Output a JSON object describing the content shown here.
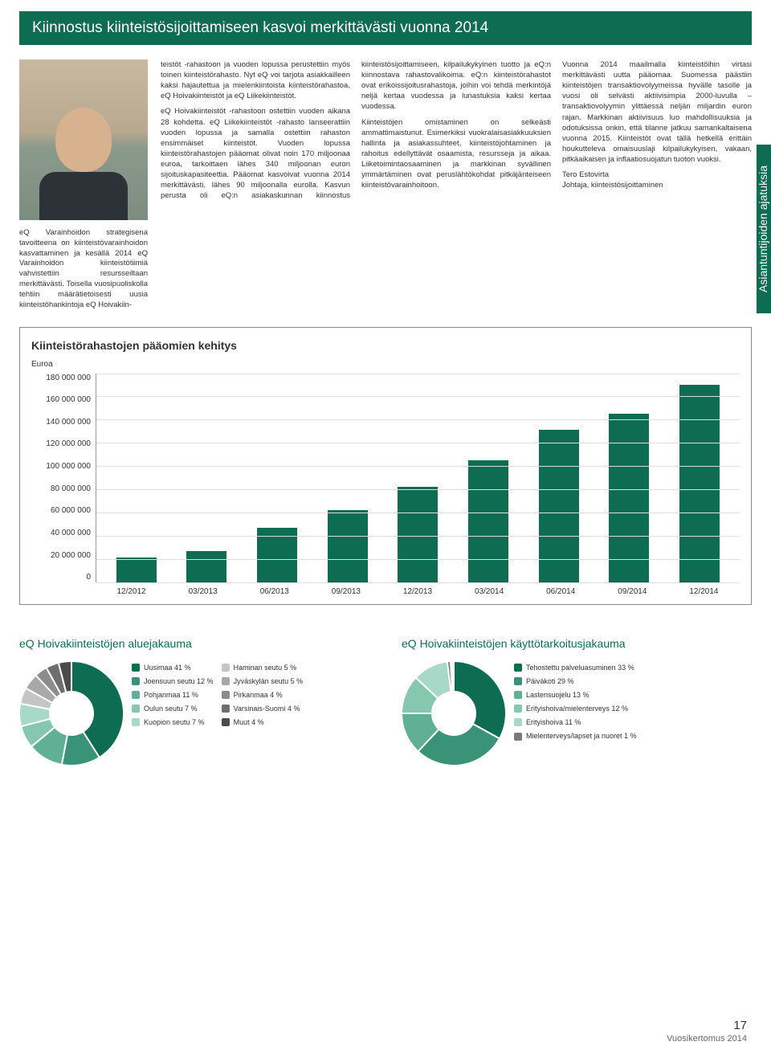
{
  "title": "Kiinnostus kiinteistösijoittamiseen kasvoi merkittävästi vuonna 2014",
  "side_tab": "Asiantuntijoiden ajatuksia",
  "photo_caption": "eQ Varainhoidon strategisena tavoitteena on kiinteistövarainhoidon kasvattaminen ja kesällä 2014 eQ Varainhoidon kiinteistötiimiä vahvistettiin resursseiltaan merkittävästi. Toisella vuosipuoliskolla tehtiin määrätietoisesti uusia kiinteistöhankintoja eQ Hoivakiin-",
  "body_p1": "teistöt -rahastoon ja vuoden lopussa perustettiin myös toinen kiinteistörahasto. Nyt eQ voi tarjota asiakkailleen kaksi hajautettua ja mielenkiintoista kiinteistörahastoa, eQ Hoivakiinteistöt ja eQ Liikekiinteistöt.",
  "body_p2": "eQ Hoivakiinteistöt -rahastoon ostettiin vuoden aikana 28 kohdetta. eQ Liikekiinteistöt -rahasto lanseerattiin vuoden lopussa ja samalla ostettiin rahaston ensimmäiset kiinteistöt. Vuoden lopussa kiinteistörahastojen pääomat olivat noin 170 miljoonaa euroa, tarkoittaen lähes 340 miljoonan euron sijoituskapasiteettia. Pääomat kasvoivat vuonna 2014 merkittävästi, lähes 90 miljoonalla eurolla. Kasvun perusta oli eQ:n asiakaskunnan kiinnostus kiinteistösijoittamiseen, kilpailukykyinen tuotto ja eQ:n kiinnostava rahastovalikoima. eQ:n kiinteistörahastot ovat erikoissijoitusrahastoja, joihin voi tehdä merkintöjä neljä kertaa vuodessa ja lunastuksia kaksi kertaa vuodessa.",
  "body_p3": "Kiinteistöjen omistaminen on selkeästi ammattimaistunut. Esimerkiksi vuokralaisasiakkuuksien hallinta ja asiakassuhteet, kiinteistöjohtaminen ja rahoitus edellyttävät osaamista, resursseja ja aikaa. Liiketoimintaosaaminen ja markkinan syvällinen ymmärtäminen ovat peruslähtökohdat pitkäjänteiseen kiinteistövarainhoitoon.",
  "body_p4": "Vuonna 2014 maailmalla kiinteistöihin virtasi merkittävästi uutta pääomaa. Suomessa päästiin kiinteistöjen transaktiovolyymeissa hyvälle tasolle ja vuosi oli selvästi aktiivisimpia 2000-luvulla – transaktiovolyymin ylittäessä neljän miljardin euron rajan. Markkinan aktiivisuus luo mahdollisuuksia ja odotuksissa onkin, että tilanne jatkuu samankaltaisena vuonna 2015. Kiinteistöt ovat tällä hetkellä erittäin houkutteleva omaisuuslaji kilpailukykyisen, vakaan, pitkäaikaisen ja inflaatiosuojatun tuoton vuoksi.",
  "signer_name": "Tero Estovirta",
  "signer_title": "Johtaja, kiinteistösijoittaminen",
  "chart": {
    "title": "Kiinteistörahastojen pääomien kehitys",
    "y_label": "Euroa",
    "y_ticks": [
      "180 000 000",
      "160 000 000",
      "140 000 000",
      "120 000 000",
      "100 000 000",
      "80 000 000",
      "60 000 000",
      "40 000 000",
      "20 000 000",
      "0"
    ],
    "y_max": 180000000,
    "categories": [
      "12/2012",
      "03/2013",
      "06/2013",
      "09/2013",
      "12/2013",
      "03/2014",
      "06/2014",
      "09/2014",
      "12/2014"
    ],
    "values": [
      21000000,
      27000000,
      47000000,
      62000000,
      82000000,
      105000000,
      131000000,
      145000000,
      170000000
    ],
    "bar_color": "#0d6c51",
    "grid_color": "#dddddd"
  },
  "pie1": {
    "title": "eQ Hoivakiinteistöjen aluejakauma",
    "items": [
      {
        "label": "Uusimaa 41 %",
        "v": 41,
        "c": "#0d6c51"
      },
      {
        "label": "Joensuun seutu 12 %",
        "v": 12,
        "c": "#3a9277"
      },
      {
        "label": "Pohjanmaa 11 %",
        "v": 11,
        "c": "#5fb095"
      },
      {
        "label": "Oulun seutu 7 %",
        "v": 7,
        "c": "#86c7b0"
      },
      {
        "label": "Kuopion seutu 7 %",
        "v": 7,
        "c": "#a8d9c8"
      },
      {
        "label": "Haminan seutu 5 %",
        "v": 5,
        "c": "#c5c5c5"
      },
      {
        "label": "Jyväskylän seutu 5 %",
        "v": 5,
        "c": "#a8a8a8"
      },
      {
        "label": "Pirkanmaa 4 %",
        "v": 4,
        "c": "#8c8c8c"
      },
      {
        "label": "Varsinais-Suomi 4 %",
        "v": 4,
        "c": "#6e6e6e"
      },
      {
        "label": "Muut 4 %",
        "v": 4,
        "c": "#4b4b4b"
      }
    ]
  },
  "pie2": {
    "title": "eQ Hoivakiinteistöjen käyttötarkoitusjakauma",
    "items": [
      {
        "label": "Tehostettu palveluasuminen 33 %",
        "v": 33,
        "c": "#0d6c51"
      },
      {
        "label": "Päiväkoti 29 %",
        "v": 29,
        "c": "#3a9277"
      },
      {
        "label": "Lastensuojelu 13 %",
        "v": 13,
        "c": "#5fb095"
      },
      {
        "label": "Erityishoiva/mielenterveys 12 %",
        "v": 12,
        "c": "#86c7b0"
      },
      {
        "label": "Erityishoiva 11 %",
        "v": 11,
        "c": "#a8d9c8"
      },
      {
        "label": "Mielenterveys/lapset ja nuoret 1 %",
        "v": 1,
        "c": "#7a7a7a"
      }
    ]
  },
  "footer": {
    "page": "17",
    "label": "Vuosikertomus 2014"
  }
}
